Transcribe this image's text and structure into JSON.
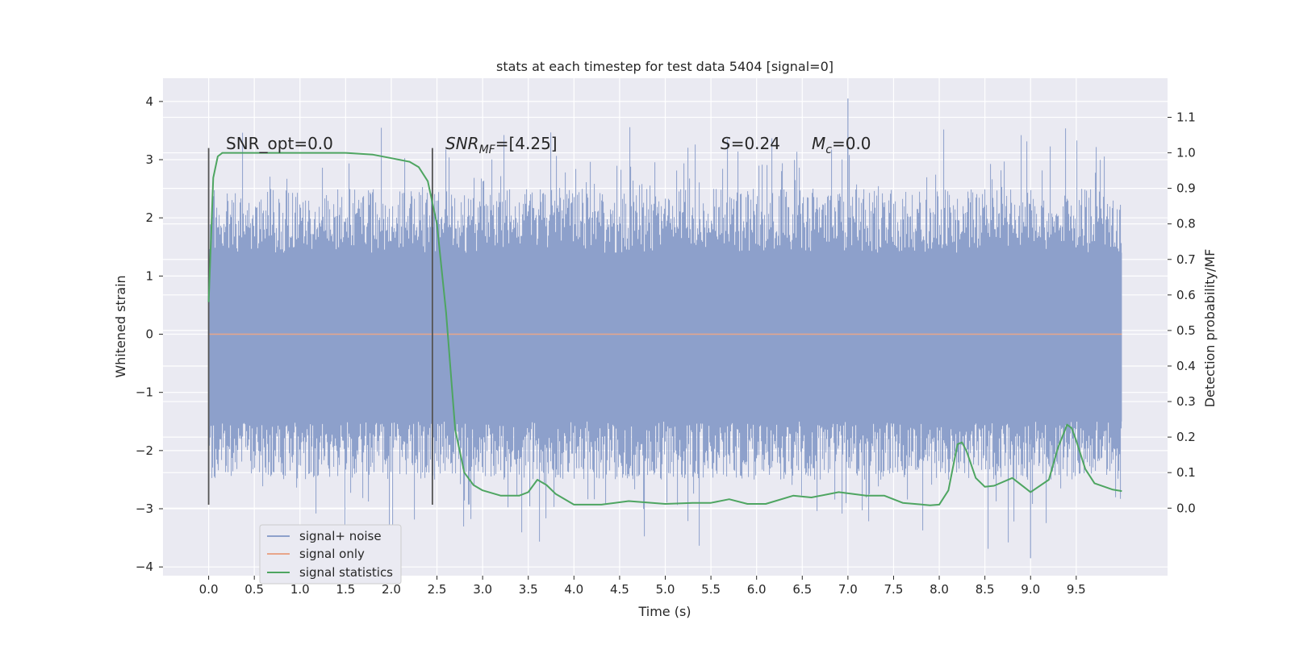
{
  "chart_data": {
    "type": "line",
    "title": "stats at each timestep for test data 5404 [signal=0]",
    "xlabel": "Time (s)",
    "ylabel": "Whitened strain",
    "y2label": "Detection probability/MF",
    "xlim": [
      -0.5,
      10.5
    ],
    "ylim": [
      -4.15,
      4.4
    ],
    "y2lim": [
      -0.19,
      1.21
    ],
    "xticks": [
      0.0,
      0.5,
      1.0,
      1.5,
      2.0,
      2.5,
      3.0,
      3.5,
      4.0,
      4.5,
      5.0,
      5.5,
      6.0,
      6.5,
      7.0,
      7.5,
      8.0,
      8.5,
      9.0,
      9.5
    ],
    "xtick_labels": [
      "0.0",
      "0.5",
      "1.0",
      "1.5",
      "2.0",
      "2.5",
      "3.0",
      "3.5",
      "4.0",
      "4.5",
      "5.0",
      "5.5",
      "6.0",
      "6.5",
      "7.0",
      "7.5",
      "8.0",
      "8.5",
      "9.0",
      "9.5"
    ],
    "yticks": [
      4,
      3,
      2,
      1,
      0,
      -1,
      -2,
      -3,
      -4
    ],
    "ytick_labels": [
      "4",
      "3",
      "2",
      "1",
      "0",
      "−1",
      "−2",
      "−3",
      "−4"
    ],
    "y2ticks": [
      1.1,
      1.0,
      0.9,
      0.8,
      0.7,
      0.6,
      0.5,
      0.4,
      0.3,
      0.2,
      0.1,
      0.0
    ],
    "y2tick_labels": [
      "1.1",
      "1.0",
      "0.9",
      "0.8",
      "0.7",
      "0.6",
      "0.5",
      "0.4",
      "0.3",
      "0.2",
      "0.1",
      "0.0"
    ],
    "grid": true,
    "legend_position": "lower-left",
    "colors": {
      "noise": "#8da0cb",
      "signal_only": "#e8a58a",
      "statistics": "#4ea561",
      "marker": "#555555",
      "background": "#eaeaf2",
      "grid": "#ffffff"
    },
    "series": [
      {
        "name": "signal+ noise",
        "kind": "noise_band",
        "x_range": [
          0.0,
          10.0
        ],
        "typical_range": [
          -1.5,
          1.4
        ],
        "max": 4.05,
        "min": -3.85
      },
      {
        "name": "signal only",
        "kind": "line",
        "x": [
          0.0,
          10.0
        ],
        "y": [
          0.0,
          0.0
        ]
      },
      {
        "name": "signal statistics",
        "kind": "line",
        "axis": "right",
        "x": [
          0.0,
          0.05,
          0.1,
          0.15,
          0.2,
          0.3,
          0.5,
          1.0,
          1.5,
          1.8,
          2.0,
          2.2,
          2.3,
          2.4,
          2.5,
          2.6,
          2.7,
          2.8,
          2.9,
          3.0,
          3.2,
          3.4,
          3.5,
          3.6,
          3.7,
          3.8,
          4.0,
          4.3,
          4.6,
          5.0,
          5.3,
          5.5,
          5.7,
          5.9,
          6.1,
          6.4,
          6.6,
          6.9,
          7.2,
          7.4,
          7.6,
          7.9,
          8.0,
          8.1,
          8.2,
          8.25,
          8.3,
          8.4,
          8.5,
          8.6,
          8.8,
          9.0,
          9.2,
          9.3,
          9.4,
          9.45,
          9.5,
          9.6,
          9.7,
          9.9,
          10.0
        ],
        "y": [
          0.58,
          0.93,
          0.99,
          1.0,
          1.0,
          1.0,
          1.0,
          1.0,
          1.0,
          0.995,
          0.985,
          0.975,
          0.96,
          0.92,
          0.8,
          0.55,
          0.22,
          0.1,
          0.065,
          0.05,
          0.035,
          0.035,
          0.045,
          0.08,
          0.065,
          0.04,
          0.01,
          0.01,
          0.02,
          0.012,
          0.015,
          0.015,
          0.025,
          0.012,
          0.012,
          0.035,
          0.03,
          0.045,
          0.035,
          0.035,
          0.015,
          0.008,
          0.01,
          0.05,
          0.18,
          0.185,
          0.16,
          0.085,
          0.06,
          0.063,
          0.085,
          0.045,
          0.08,
          0.17,
          0.235,
          0.225,
          0.19,
          0.11,
          0.07,
          0.052,
          0.048
        ]
      }
    ],
    "vertical_markers": [
      {
        "x": 0.0,
        "y_range": [
          -2.93,
          3.2
        ]
      },
      {
        "x": 2.45,
        "y_range": [
          -2.93,
          3.2
        ]
      }
    ],
    "annotations": {
      "snr_opt": "SNR_opt=0.0",
      "snr_mf_base": "SNR",
      "snr_mf_sub": "MF",
      "snr_mf_value": "=[4.25]",
      "s_base": "S",
      "s_value": "=0.24",
      "mc_base": "M",
      "mc_sub": "c",
      "mc_value": "=0.0"
    }
  }
}
